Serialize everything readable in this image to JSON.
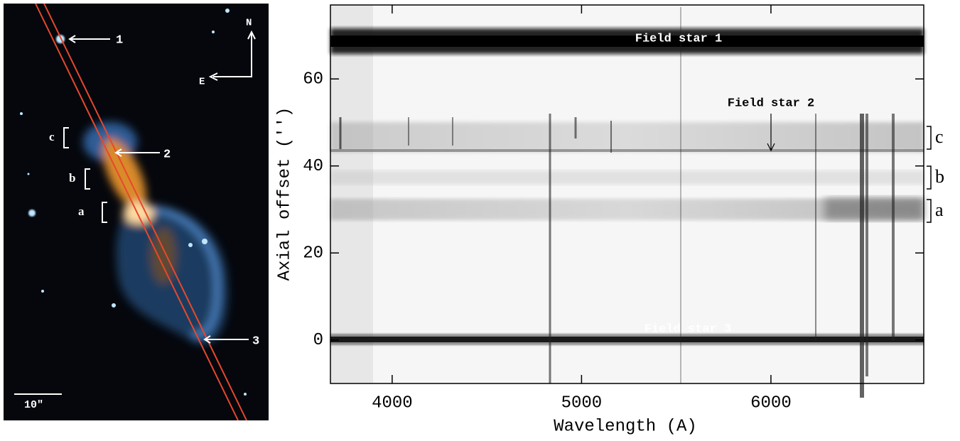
{
  "image": {
    "labels": [
      "1",
      "2",
      "3",
      "c",
      "b",
      "a",
      "N",
      "E",
      "10\""
    ]
  },
  "chart_data": {
    "type": "spectrum-image",
    "xlabel": "Wavelength (A)",
    "ylabel": "Axial offset ('')",
    "xlim": [
      3674,
      6807
    ],
    "ylim": [
      -10,
      77
    ],
    "xticks": [
      4000,
      5000,
      6000
    ],
    "yticks": [
      0,
      20,
      40,
      60
    ],
    "annotations": [
      "Field star 1",
      "Field star 2",
      "Field star 3"
    ],
    "regions": [
      "c",
      "b",
      "a"
    ]
  }
}
